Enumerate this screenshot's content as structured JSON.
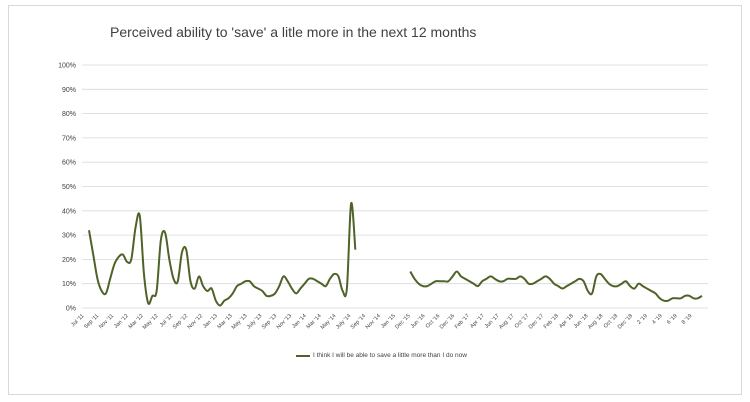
{
  "chart_data": {
    "type": "line",
    "title": "Perceived ability to 'save'  a litle more in the next 12 months",
    "xlabel": "",
    "ylabel": "",
    "ylim": [
      0,
      100
    ],
    "y_ticks": [
      "0%",
      "10%",
      "20%",
      "30%",
      "40%",
      "50%",
      "60%",
      "70%",
      "80%",
      "90%",
      "100%"
    ],
    "grid": "horizontal",
    "legend_position": "bottom",
    "colors": {
      "line": "#4f6228",
      "grid": "#d9d9d9",
      "text": "#404040"
    },
    "x_tick_labels": [
      "Jul '11",
      "Sep '11",
      "Nov '11",
      "Jan '12",
      "Mar '12",
      "May '12",
      "Jul '12",
      "Sep '12",
      "Nov '12",
      "Jan '13",
      "Mar '13",
      "May '13",
      "July '13",
      "Sep '13",
      "Nov '13",
      "Jan '14",
      "Mar '14",
      "May '14",
      "July '14",
      "Sep '14",
      "Nov '14",
      "Jan '15",
      "Dec '15",
      "Jun '16",
      "Oct '16",
      "Dec '16",
      "Feb '17",
      "Apr '17",
      "Jun '17",
      "Aug '17",
      "Oct '17",
      "Dec '17",
      "Feb '18",
      "Apr '18",
      "Jun '18",
      "Aug '18",
      "Oct '18",
      "Dec '18",
      "2 '19",
      "4 '19",
      "6 '19",
      "8 '19"
    ],
    "series": [
      {
        "name": "I think I will be able to save a little more than I do now",
        "segments": [
          [
            32,
            22,
            12,
            7,
            6,
            12,
            18,
            21,
            22,
            19,
            20,
            33,
            38,
            14,
            2,
            5,
            7,
            28,
            31,
            20,
            12,
            11,
            23,
            24,
            11,
            8,
            13,
            9,
            7,
            8,
            3,
            1,
            3,
            4,
            6,
            9,
            10,
            11,
            11,
            9,
            8,
            7,
            5,
            5,
            6,
            9,
            13,
            11,
            8,
            6,
            8,
            10,
            12,
            12,
            11,
            10,
            9,
            12,
            14,
            13,
            7,
            8,
            43,
            24
          ],
          [
            15,
            12,
            10,
            9,
            9,
            10,
            11,
            11,
            11,
            11,
            13,
            15,
            13,
            12,
            11,
            10,
            9,
            11,
            12,
            13,
            12,
            11,
            11,
            12,
            12,
            12,
            13,
            12,
            10,
            10,
            11,
            12,
            13,
            12,
            10,
            9,
            8,
            9,
            10,
            11,
            12,
            11,
            7,
            6,
            13,
            14,
            12,
            10,
            9,
            9,
            10,
            11,
            9,
            8,
            10,
            9,
            8,
            7,
            6,
            4,
            3,
            3,
            4,
            4,
            4,
            5,
            5,
            4,
            4,
            5
          ]
        ]
      }
    ]
  }
}
